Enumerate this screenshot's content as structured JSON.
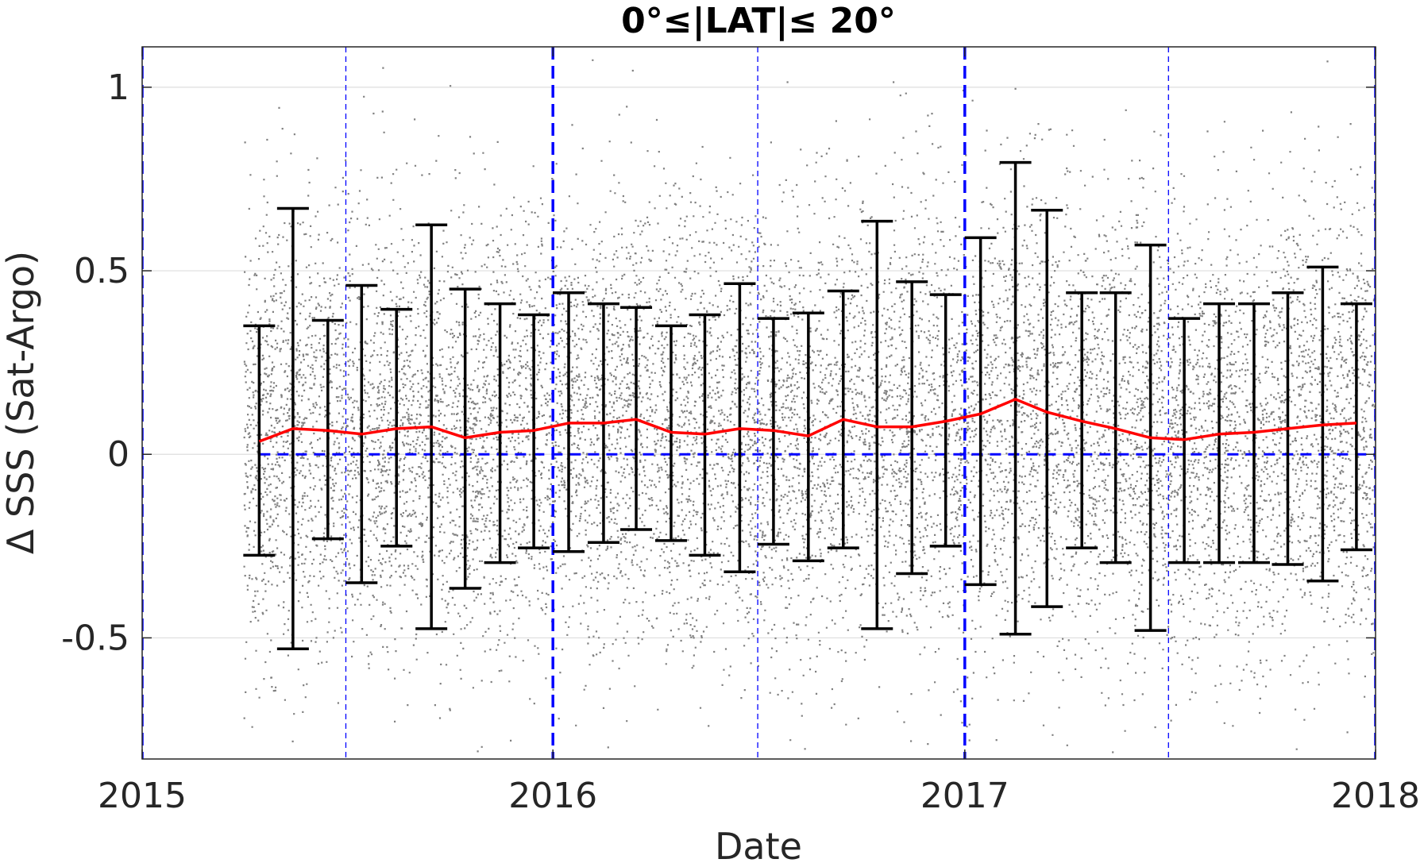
{
  "chart_data": {
    "type": "scatter",
    "title": "0°≤|LAT|≤ 20°",
    "xlabel": "Date",
    "ylabel": "Δ SSS (Sat-Argo)",
    "xlim": [
      "2015-01-01",
      "2018-01-01"
    ],
    "ylim": [
      -0.83,
      1.11
    ],
    "x_ticks": [
      "2015",
      "2016",
      "2017",
      "2018"
    ],
    "y_ticks": [
      "1",
      "0.5",
      "0",
      "-0.5"
    ],
    "y_tick_values": [
      1,
      0.5,
      0,
      -0.5
    ],
    "grid": "horizontal",
    "reference_line": 0,
    "year_boundaries": [
      "2015-01-01",
      "2016-01-01",
      "2017-01-01",
      "2018-01-01"
    ],
    "half_year_markers": [
      "2015-07-01",
      "2016-07-01",
      "2017-07-01"
    ],
    "scatter_date_range": [
      "2015-04-01",
      "2018-01-01"
    ],
    "scatter_spread_sd": 0.3,
    "colors": {
      "scatter": "#808080",
      "mean_line": "#ff0000",
      "error_bars": "#000000",
      "reference_lines": "#0000ff",
      "grid": "#dedede"
    },
    "series": [
      {
        "type": "line_with_errorbars",
        "x": [
          "2015-04-15",
          "2015-05-15",
          "2015-06-15",
          "2015-07-15",
          "2015-08-15",
          "2015-09-15",
          "2015-10-15",
          "2015-11-15",
          "2015-12-15",
          "2016-01-15",
          "2016-02-15",
          "2016-03-15",
          "2016-04-15",
          "2016-05-15",
          "2016-06-15",
          "2016-07-15",
          "2016-08-15",
          "2016-09-15",
          "2016-10-15",
          "2016-11-15",
          "2016-12-15",
          "2017-01-15",
          "2017-02-15",
          "2017-03-15",
          "2017-04-15",
          "2017-05-15",
          "2017-06-15",
          "2017-07-15",
          "2017-08-15",
          "2017-09-15",
          "2017-10-15",
          "2017-11-15",
          "2017-12-15"
        ],
        "mean": [
          0.035,
          0.07,
          0.065,
          0.055,
          0.07,
          0.075,
          0.045,
          0.06,
          0.065,
          0.085,
          0.085,
          0.095,
          0.06,
          0.055,
          0.07,
          0.065,
          0.05,
          0.095,
          0.075,
          0.075,
          0.09,
          0.11,
          0.15,
          0.115,
          0.09,
          0.07,
          0.045,
          0.04,
          0.055,
          0.06,
          0.07,
          0.08,
          0.085
        ],
        "upper": [
          0.35,
          0.67,
          0.365,
          0.46,
          0.395,
          0.625,
          0.45,
          0.41,
          0.38,
          0.44,
          0.41,
          0.4,
          0.35,
          0.38,
          0.465,
          0.37,
          0.385,
          0.445,
          0.635,
          0.47,
          0.435,
          0.59,
          0.795,
          0.665,
          0.44,
          0.44,
          0.57,
          0.37,
          0.41,
          0.41,
          0.44,
          0.51,
          0.41
        ],
        "lower": [
          -0.275,
          -0.53,
          -0.23,
          -0.35,
          -0.25,
          -0.475,
          -0.365,
          -0.295,
          -0.255,
          -0.265,
          -0.24,
          -0.205,
          -0.235,
          -0.275,
          -0.32,
          -0.245,
          -0.29,
          -0.255,
          -0.475,
          -0.325,
          -0.25,
          -0.355,
          -0.49,
          -0.415,
          -0.255,
          -0.295,
          -0.48,
          -0.295,
          -0.295,
          -0.295,
          -0.3,
          -0.345,
          -0.26
        ]
      }
    ]
  }
}
